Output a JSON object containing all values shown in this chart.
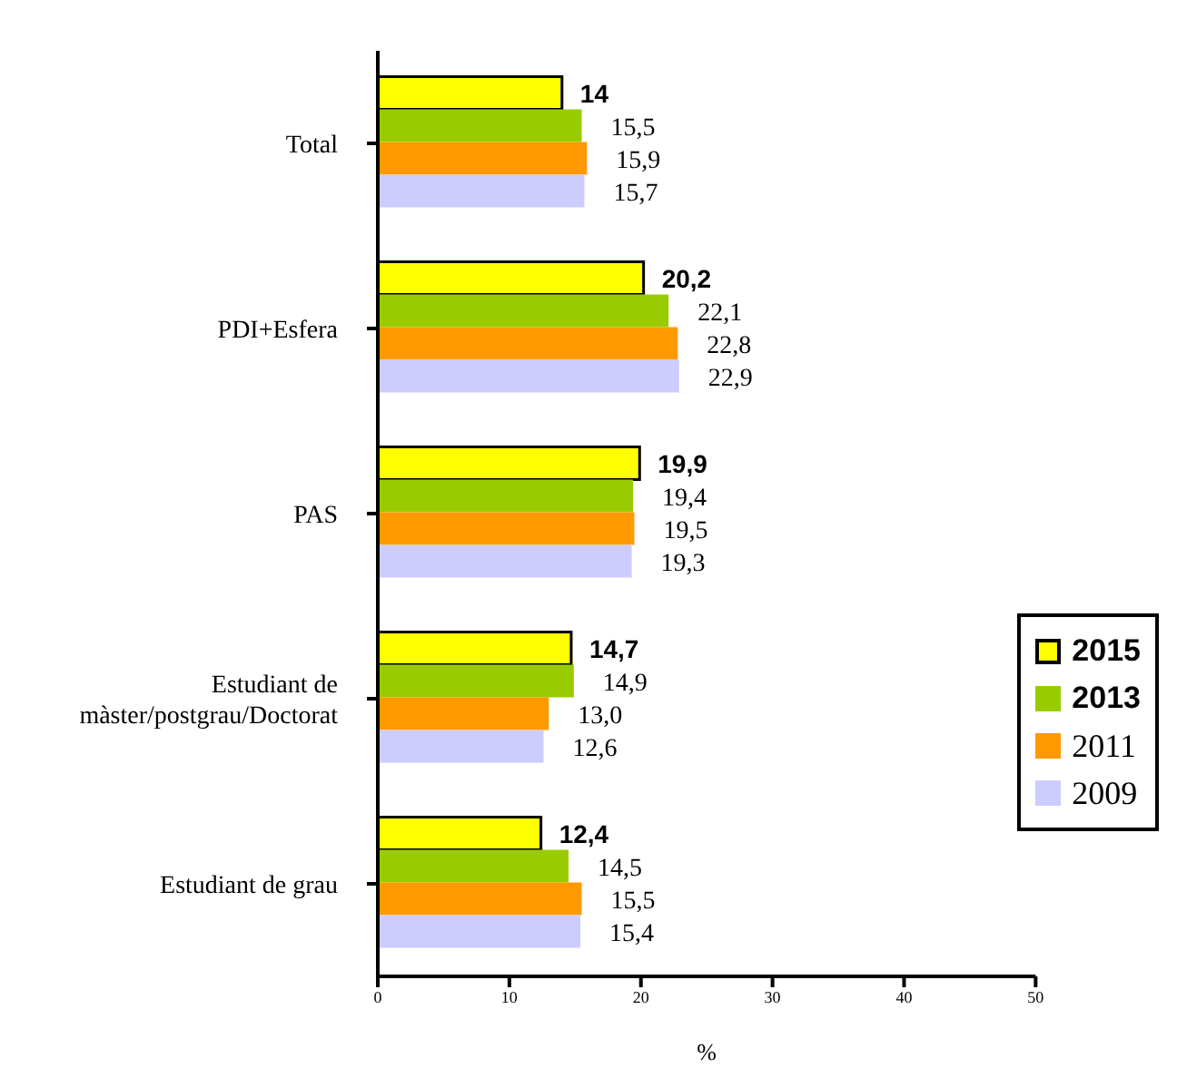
{
  "chart_data": {
    "type": "bar",
    "orientation": "horizontal",
    "xlabel": "%",
    "categories": [
      "Total",
      "PDI+Esfera",
      "PAS",
      "Estudiant de màster/postgrau/Doctorat",
      "Estudiant de grau"
    ],
    "series": [
      {
        "name": "2015",
        "color": "#ffff00",
        "values": [
          14,
          20.2,
          19.9,
          14.7,
          12.4
        ],
        "value_labels": [
          "14",
          "20,2",
          "19,9",
          "14,7",
          "12,4"
        ]
      },
      {
        "name": "2013",
        "color": "#99cc00",
        "values": [
          15.5,
          22.1,
          19.4,
          14.9,
          14.5
        ],
        "value_labels": [
          "15,5",
          "22,1",
          "19,4",
          "14,9",
          "14,5"
        ]
      },
      {
        "name": "2011",
        "color": "#ff9900",
        "values": [
          15.9,
          22.8,
          19.5,
          13.0,
          15.5
        ],
        "value_labels": [
          "15,9",
          "22,8",
          "19,5",
          "13,0",
          "15,5"
        ]
      },
      {
        "name": "2009",
        "color": "#ccccff",
        "values": [
          15.7,
          22.9,
          19.3,
          12.6,
          15.4
        ],
        "value_labels": [
          "15,7",
          "22,9",
          "19,3",
          "12,6",
          "15,4"
        ]
      }
    ],
    "xlim": [
      0,
      50
    ],
    "xticks": [
      0,
      10,
      20,
      30,
      40,
      50
    ],
    "grid": false,
    "legend": "right"
  }
}
